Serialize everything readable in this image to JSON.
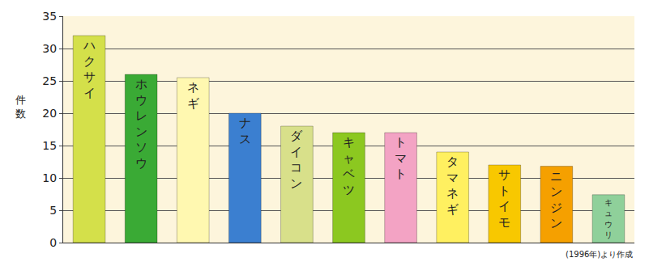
{
  "chart_data": {
    "type": "bar",
    "y_label": "件数",
    "annotations": [
      "(1996年)より作成"
    ],
    "categories": [
      "ハクサイ",
      "ホウレンソウ",
      "ネギ",
      "ナス",
      "ダイコン",
      "キャベツ",
      "トマト",
      "タマネギ",
      "サトイモ",
      "ニンジン",
      "キュウリ"
    ],
    "values": [
      32,
      26,
      25.5,
      20,
      18,
      17,
      17,
      14,
      12,
      11.8,
      7.4
    ],
    "colors": [
      "#d4e04a",
      "#3aaa35",
      "#fff8b0",
      "#3b7fd0",
      "#d8e08a",
      "#8cc820",
      "#f3a3c4",
      "#fff060",
      "#f8c800",
      "#f5a000",
      "#8fd09a"
    ],
    "ylim": [
      0,
      35
    ],
    "yticks": [
      0,
      5,
      10,
      15,
      20,
      25,
      30,
      35
    ],
    "grid": true,
    "tick_labels": "y"
  }
}
